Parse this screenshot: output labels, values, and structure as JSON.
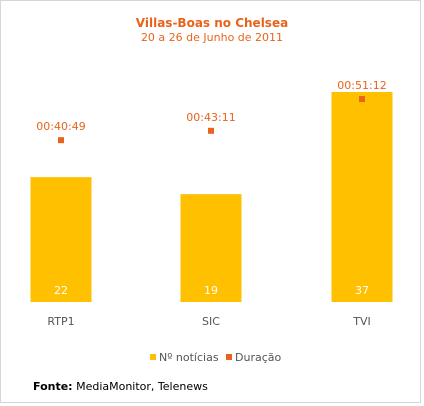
{
  "chart_data": {
    "type": "bar",
    "title": "Villas-Boas no Chelsea",
    "subtitle": "20 a 26 de Junho de 2011",
    "categories": [
      "RTP1",
      "SIC",
      "TVI"
    ],
    "series": [
      {
        "name": "Nº notícias",
        "type": "bar",
        "values": [
          22,
          19,
          37
        ],
        "labels": [
          "22",
          "19",
          "37"
        ],
        "color": "#ffc000"
      },
      {
        "name": "Duração",
        "type": "scatter",
        "values": [
          "00:40:49",
          "00:43:11",
          "00:51:12"
        ],
        "values_seconds": [
          2449,
          2591,
          3072
        ],
        "labels": [
          "00:40:49",
          "00:43:11",
          "00:51:12"
        ],
        "color": "#e8641b"
      }
    ],
    "ylim_bars": [
      0,
      37
    ],
    "ylim_duration_seconds": [
      0,
      3072
    ],
    "grid": false,
    "legend_position": "bottom"
  },
  "source": {
    "label": "Fonte:",
    "text": "MediaMonitor, Telenews"
  }
}
